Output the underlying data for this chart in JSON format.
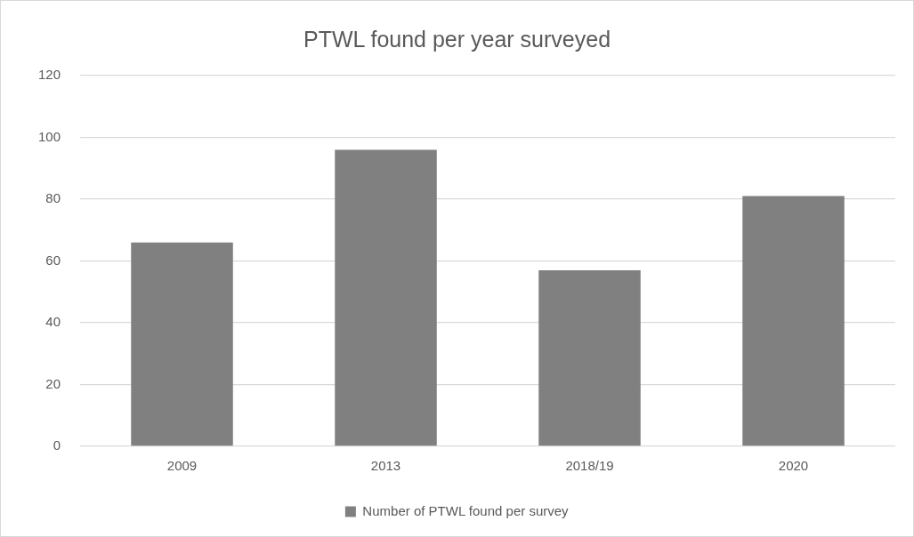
{
  "chart_data": {
    "type": "bar",
    "title": "PTWL found per year surveyed",
    "categories": [
      "2009",
      "2013",
      "2018/19",
      "2020"
    ],
    "series": [
      {
        "name": "Number of PTWL found per survey",
        "color": "#808080",
        "values": [
          66,
          96,
          57,
          81
        ]
      }
    ],
    "ylim": [
      0,
      120
    ],
    "yticks": [
      0,
      20,
      40,
      60,
      80,
      100,
      120
    ],
    "grid": "y",
    "legend": "bottom"
  }
}
